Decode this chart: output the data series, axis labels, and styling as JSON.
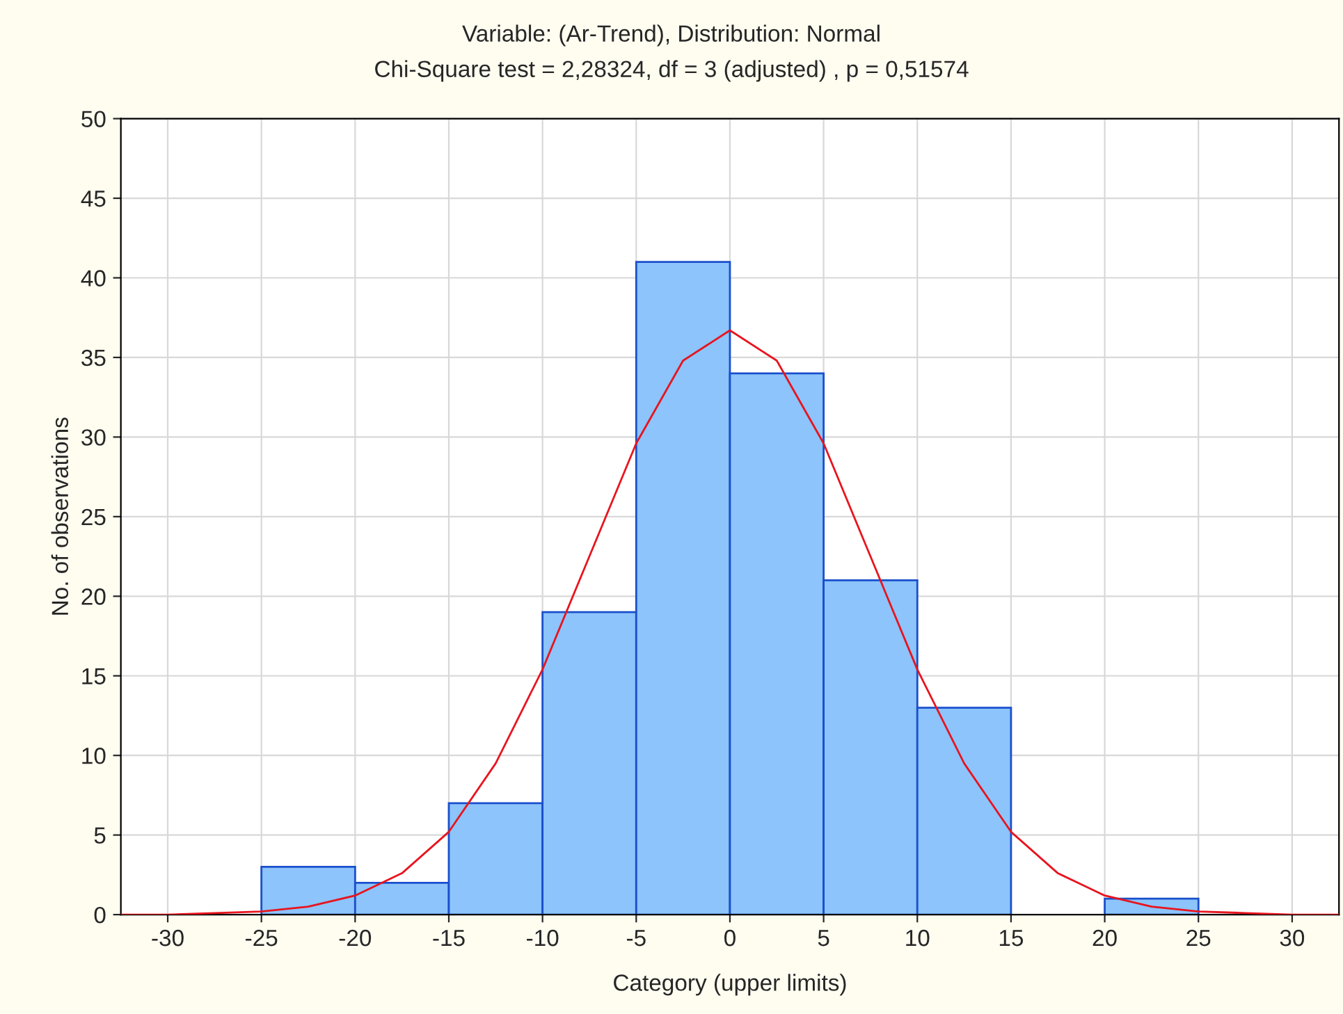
{
  "chart_data": {
    "type": "histogram",
    "title": "Variable: (Ar-Trend), Distribution: Normal",
    "subtitle": "Chi-Square test = 2,28324, df = 3 (adjusted) , p = 0,51574",
    "xlabel": "Category (upper limits)",
    "ylabel": "No. of observations",
    "bins": [
      -25,
      -20,
      -15,
      -10,
      -5,
      0,
      5,
      10,
      15,
      20,
      25
    ],
    "values": [
      3,
      2,
      7,
      19,
      41,
      34,
      21,
      13,
      0,
      1
    ],
    "color": "#8cc4fb",
    "series": [
      {
        "type": "line",
        "color": "#e8141e",
        "x": [
          -32.5,
          -30,
          -27.5,
          -25,
          -22.5,
          -20,
          -17.5,
          -15,
          -12.5,
          -10,
          -7.5,
          -5,
          -2.5,
          0,
          2.5,
          5,
          7.5,
          10,
          12.5,
          15,
          17.5,
          20,
          22.5,
          25,
          27.5,
          30,
          32.5
        ],
        "values": [
          0,
          0,
          0.1,
          0.2,
          0.5,
          1.2,
          2.6,
          5.2,
          9.5,
          15.4,
          22.5,
          29.6,
          34.8,
          36.7,
          34.8,
          29.6,
          22.5,
          15.4,
          9.5,
          5.2,
          2.6,
          1.2,
          0.5,
          0.2,
          0.1,
          0,
          0
        ]
      }
    ],
    "xlim": [
      -32.5,
      32.5
    ],
    "xticks": [
      -30,
      -25,
      -20,
      -15,
      -10,
      -5,
      0,
      5,
      10,
      15,
      20,
      25,
      30
    ],
    "ylim": [
      0,
      50
    ],
    "yticks": [
      0,
      5,
      10,
      15,
      20,
      25,
      30,
      35,
      40,
      45,
      50
    ],
    "grid": true
  }
}
